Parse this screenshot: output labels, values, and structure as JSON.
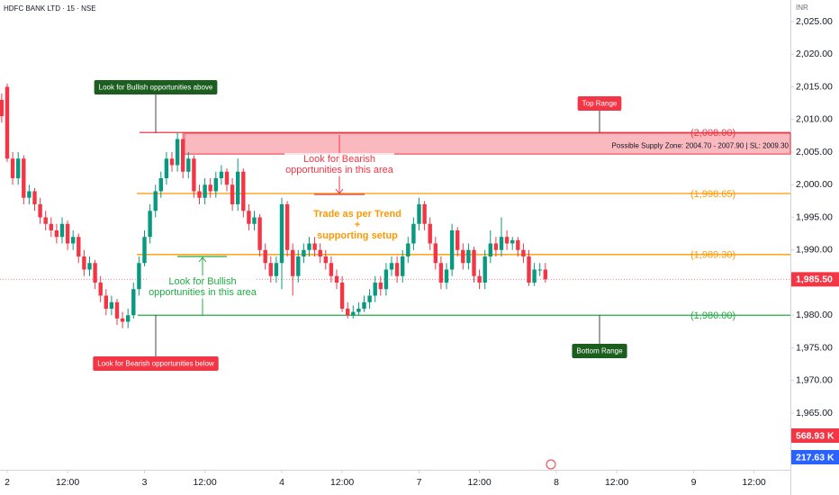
{
  "chart_data": {
    "type": "candlestick",
    "title": "HDFC BANK LTD · 15 · NSE",
    "currency": "INR",
    "up_color": "#089981",
    "down_color": "#f23645",
    "x": [
      -1,
      0,
      1,
      2,
      3,
      4,
      5,
      6,
      7,
      8,
      9,
      10,
      11,
      12,
      13,
      14,
      15,
      16,
      17,
      18,
      19,
      20,
      21,
      22,
      23,
      24,
      25,
      26,
      27,
      28,
      29,
      30,
      31,
      32,
      33,
      34,
      35,
      36,
      37,
      38,
      39,
      40,
      41,
      42,
      43,
      44,
      45,
      46,
      47,
      48,
      49,
      50,
      51,
      52,
      53,
      54,
      55,
      56,
      57,
      58,
      59,
      60,
      61,
      62,
      63,
      64,
      65,
      66,
      67,
      68,
      69,
      70,
      71,
      72,
      73,
      74,
      75,
      76,
      77,
      78,
      79,
      80,
      81,
      82,
      83,
      84,
      85,
      86,
      87,
      88,
      89,
      90,
      91,
      92,
      93,
      94,
      95,
      96,
      97,
      98
    ],
    "open": [
      2013,
      2015,
      2004,
      2001,
      2004,
      1998,
      1999,
      1997,
      1995,
      1994,
      1993,
      1992,
      1994,
      1991,
      1992,
      1989,
      1987,
      1988,
      1985,
      1983,
      1981,
      1982,
      1979.5,
      1979,
      1980,
      1984,
      1988,
      1992,
      1996,
      1999,
      2001,
      2004,
      2003,
      2007,
      2002,
      2004,
      1999,
      1998,
      2000,
      1999,
      2001,
      2002,
      2000,
      1997,
      2002,
      1996,
      1994,
      1995,
      1990,
      1988,
      1986,
      1988,
      1997,
      1990,
      1986,
      1989,
      1990,
      1991,
      1990,
      1989,
      1988,
      1986,
      1985,
      1981,
      1980,
      1980.5,
      1981,
      1982,
      1983,
      1985,
      1984,
      1987,
      1988,
      1986,
      1989,
      1991,
      1994,
      1997,
      1994,
      1991,
      1988,
      1985,
      1987,
      1993,
      1990,
      1988,
      1990,
      1986,
      1985,
      1989,
      1991,
      1990,
      1992,
      1991,
      1991.5,
      1990,
      1989,
      1985,
      1987,
      1987
    ],
    "high": [
      2014,
      2015.5,
      2005,
      2005,
      2004.5,
      2000,
      1999.5,
      1998,
      1996,
      1995,
      1994,
      1995,
      1994.5,
      1993,
      1992.5,
      1990,
      1989,
      1988.5,
      1986,
      1984,
      1983,
      1982.5,
      1980.5,
      1981,
      1985,
      1989,
      1993,
      1997,
      2000,
      2002,
      2005,
      2005,
      2008,
      2008,
      2005,
      2004.5,
      2000,
      2001,
      2001,
      2002,
      2003,
      2002.5,
      2001,
      2004,
      2002.5,
      1997,
      1996,
      1995.5,
      1991,
      1989,
      1989,
      1998,
      1997.5,
      1991,
      1990,
      1991,
      1992,
      1992,
      1991,
      1990,
      1989,
      1987,
      1986,
      1982,
      1981.5,
      1982,
      1983,
      1984,
      1986,
      1986,
      1988,
      1989,
      1989,
      1990,
      1992,
      1995,
      1998,
      1997.5,
      1995,
      1992,
      1989,
      1988,
      1994,
      1993.5,
      1991,
      1991,
      1990.5,
      1987,
      1990,
      1993,
      1992,
      1995,
      1993,
      1992,
      1992,
      1991,
      1990,
      1988,
      1988,
      1988
    ],
    "low": [
      2009.5,
      2003.5,
      2000,
      2000,
      1997,
      1997,
      1996,
      1994,
      1993,
      1992,
      1991,
      1991,
      1990,
      1990,
      1988,
      1986,
      1986,
      1984,
      1982,
      1980,
      1980,
      1978.5,
      1978,
      1978,
      1979.5,
      1983,
      1987.5,
      1991,
      1995,
      1998,
      2000,
      2002,
      2002,
      2001,
      2001,
      1998,
      1997,
      1997,
      1998,
      1998,
      2000,
      1999,
      1996,
      1996,
      1995,
      1993,
      1993,
      1989,
      1987,
      1985,
      1985,
      1984,
      1989,
      1983,
      1985,
      1988,
      1989,
      1989,
      1988,
      1987,
      1985,
      1984,
      1980.5,
      1979.5,
      1979.5,
      1980,
      1980.5,
      1981,
      1982,
      1983,
      1983,
      1986,
      1985,
      1985,
      1988,
      1990,
      1993,
      1993,
      1990,
      1987,
      1984,
      1984,
      1986,
      1989,
      1987,
      1987,
      1985,
      1984,
      1984,
      1988,
      1989,
      1989,
      1990,
      1990,
      1989,
      1988,
      1984.5,
      1984.5,
      1986,
      1985
    ],
    "close": [
      2010.5,
      2004,
      2001,
      2004,
      1998,
      1999,
      1997,
      1995,
      1994,
      1993,
      1992,
      1994,
      1991,
      1992,
      1989,
      1987,
      1988,
      1985,
      1983,
      1981,
      1982,
      1979.5,
      1979,
      1980,
      1984,
      1988,
      1992,
      1996,
      1999,
      2001,
      2004,
      2003,
      2007,
      2002,
      2004,
      1999,
      1998,
      2000,
      1999,
      2001,
      2002,
      2000,
      1997,
      2002,
      1996,
      1994,
      1995,
      1990,
      1988,
      1986,
      1988,
      1997,
      1990,
      1986,
      1989,
      1990,
      1991,
      1990,
      1989,
      1988,
      1986,
      1985,
      1981,
      1980,
      1980.5,
      1981,
      1982,
      1983,
      1985,
      1984,
      1987,
      1988,
      1986,
      1989,
      1991,
      1994,
      1997,
      1994,
      1991,
      1988,
      1985,
      1987,
      1993,
      1990,
      1988,
      1990,
      1986,
      1985,
      1989,
      1991,
      1990,
      1992,
      1991,
      1991.5,
      1990,
      1989,
      1985,
      1987,
      1987,
      1985.5
    ],
    "xlim": [
      -1.31,
      142.62
    ],
    "xticks": [
      {
        "value": 0,
        "label": "2"
      },
      {
        "value": 11,
        "label": "12:00"
      },
      {
        "value": 25,
        "label": "3"
      },
      {
        "value": 36,
        "label": "12:00"
      },
      {
        "value": 50,
        "label": "4"
      },
      {
        "value": 61,
        "label": "12:00"
      },
      {
        "value": 75,
        "label": "7"
      },
      {
        "value": 86,
        "label": "12:00"
      },
      {
        "value": 100,
        "label": "8"
      },
      {
        "value": 111,
        "label": "12:00"
      },
      {
        "value": 125,
        "label": "9"
      },
      {
        "value": 136,
        "label": "12:00"
      }
    ],
    "ylim": [
      1956.31,
      2028.31
    ],
    "yticks": [
      {
        "value": 2025,
        "label": "2,025.00"
      },
      {
        "value": 2020,
        "label": "2,020.00"
      },
      {
        "value": 2015,
        "label": "2,015.00"
      },
      {
        "value": 2010,
        "label": "2,010.00"
      },
      {
        "value": 2005,
        "label": "2,005.00"
      },
      {
        "value": 2000,
        "label": "2,000.00"
      },
      {
        "value": 1995,
        "label": "1,995.00"
      },
      {
        "value": 1990,
        "label": "1,990.00"
      },
      {
        "value": 1985,
        "label": "1,985.00"
      },
      {
        "value": 1980,
        "label": "1,980.00"
      },
      {
        "value": 1975,
        "label": "1,975.00"
      },
      {
        "value": 1970,
        "label": "1,970.00"
      },
      {
        "value": 1965,
        "label": "1,965.00"
      }
    ],
    "last_price": {
      "value": 1985.5,
      "label": "1,985.50"
    },
    "volume_badges": [
      {
        "text": "568.93 K",
        "color": "#f23645"
      },
      {
        "text": "217.63 K",
        "color": "#2962ff"
      }
    ],
    "levels": [
      {
        "value": 2008,
        "label": "(2,008.00)",
        "color": "#f23645"
      },
      {
        "value": 1998.65,
        "label": "(1,998.65)",
        "color": "#ff9800"
      },
      {
        "value": 1989.3,
        "label": "(1,989.30)",
        "color": "#ff9800"
      },
      {
        "value": 1980,
        "label": "(1,980.00)",
        "color": "#22ab45"
      }
    ],
    "zone": {
      "low": 2004.7,
      "high": 2007.9,
      "label": "Possible Supply Zone: 2004.70 - 2007.90 | SL: 2009.30",
      "color": "#f23645"
    },
    "annotations": [
      {
        "text": "Look for Bullish opportunities above",
        "color": "#1b5e20"
      },
      {
        "text": "Top Range",
        "color": "#f23645"
      },
      {
        "lines": [
          "Look for Bearish",
          "opportunities in this area"
        ],
        "color": "#f23645"
      },
      {
        "lines": [
          "Trade as per Trend",
          "+",
          "supporting setup"
        ],
        "color": "#ff9800"
      },
      {
        "lines": [
          "Look for Bullish",
          "opportunities in this area"
        ],
        "color": "#22ab45"
      },
      {
        "text": "Bottom Range",
        "color": "#1b5e20"
      },
      {
        "text": "Look for Bearish opportunities below",
        "color": "#f23645"
      }
    ]
  }
}
